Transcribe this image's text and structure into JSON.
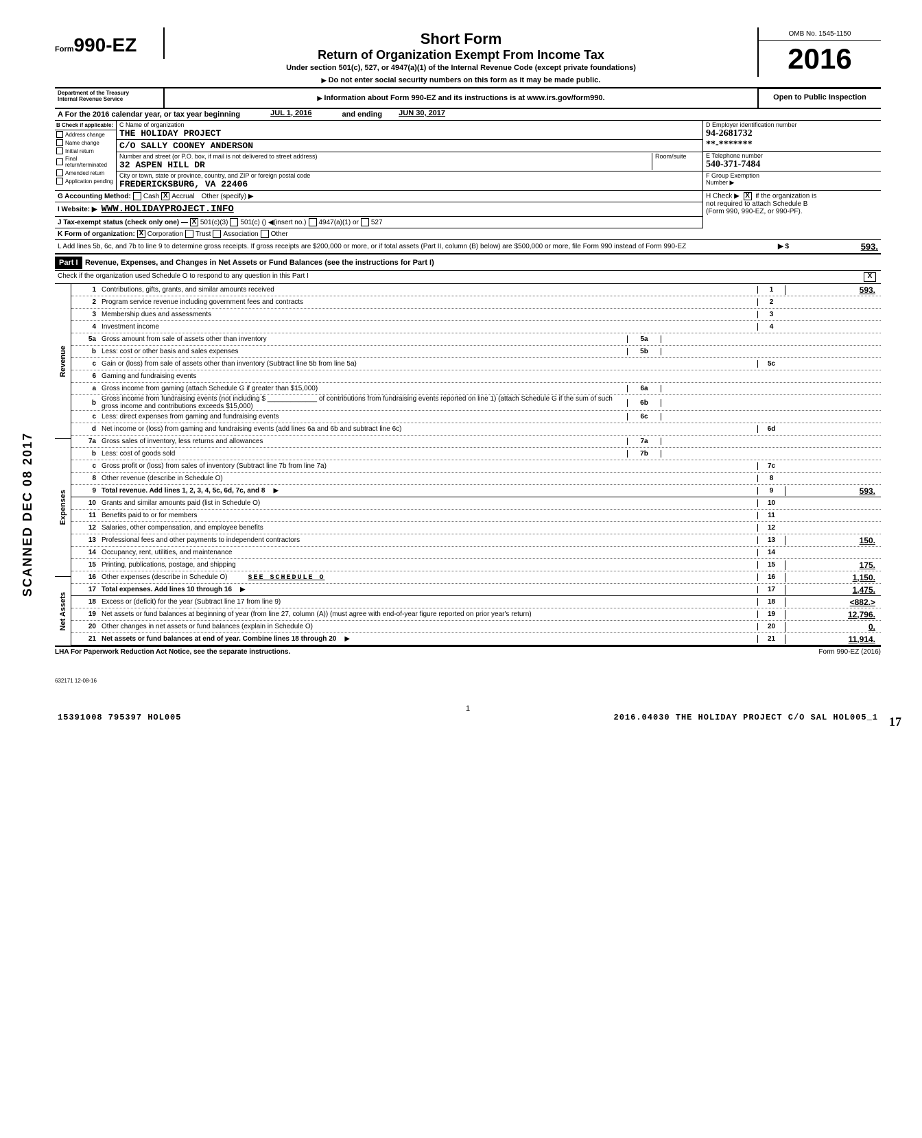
{
  "omb": "OMB No. 1545-1150",
  "form_label": "Form",
  "form_name": "990-EZ",
  "year": "2016",
  "title1": "Short Form",
  "title2": "Return of Organization Exempt From Income Tax",
  "subtitle": "Under section 501(c), 527, or 4947(a)(1) of the Internal Revenue Code (except private foundations)",
  "warn": "Do not enter social security numbers on this form as it may be made public.",
  "info": "Information about Form 990-EZ and its instructions is at www.irs.gov/form990.",
  "open": "Open to Public Inspection",
  "dept1": "Department of the Treasury",
  "dept2": "Internal Revenue Service",
  "rowA": {
    "label": "A  For the 2016 calendar year, or tax year beginning",
    "begin": "JUL 1, 2016",
    "mid": "and ending",
    "end": "JUN 30, 2017"
  },
  "checkB": {
    "hdr": "B Check if applicable:",
    "items": [
      "Address change",
      "Name change",
      "Initial return",
      "Final return/terminated",
      "Amended return",
      "Application pending"
    ]
  },
  "colC": {
    "name_lbl": "C Name of organization",
    "name": "THE HOLIDAY PROJECT",
    "care": "C/O SALLY COONEY ANDERSON",
    "addr_lbl": "Number and street (or P.O. box, if mail is not delivered to street address)",
    "room_lbl": "Room/suite",
    "addr": "32 ASPEN HILL DR",
    "city_lbl": "City or town, state or province, country, and ZIP or foreign postal code",
    "city": "FREDERICKSBURG, VA  22406"
  },
  "colD": {
    "ein_lbl": "D Employer identification number",
    "ein": "94-2681732",
    "tel_lbl": "E Telephone number",
    "tel": "540-371-7484",
    "grp_lbl": "F Group Exemption",
    "grp2": "Number ▶"
  },
  "rowG": {
    "lbl": "G  Accounting Method:",
    "cash": "Cash",
    "accrual": "Accrual",
    "other": "Other (specify) ▶"
  },
  "rowH": {
    "lbl": "H Check ▶",
    "txt1": "if the organization is",
    "txt2": "not required to attach Schedule B",
    "txt3": "(Form 990, 990-EZ, or 990-PF)."
  },
  "rowI": {
    "lbl": "I   Website: ▶",
    "val": "WWW.HOLIDAYPROJECT.INFO"
  },
  "rowJ": {
    "lbl": "J   Tax-exempt status (check only one) —",
    "a": "501(c)(3)",
    "b": "501(c) (",
    "c": ") ◀(insert no.)",
    "d": "4947(a)(1) or",
    "e": "527"
  },
  "rowK": {
    "lbl": "K  Form of organization:",
    "a": "Corporation",
    "b": "Trust",
    "c": "Association",
    "d": "Other"
  },
  "rowL": {
    "txt": "L   Add lines 5b, 6c, and 7b to line 9 to determine gross receipts. If gross receipts are $200,000 or more, or if total assets (Part II, column (B) below) are $500,000 or more, file Form 990 instead of Form 990-EZ",
    "sym": "▶  $",
    "val": "593."
  },
  "partI": {
    "hdr": "Part I",
    "title": "Revenue, Expenses, and Changes in Net Assets or Fund Balances (see the instructions for Part I)"
  },
  "schedO": {
    "txt": "Check if the organization used Schedule O to respond to any question in this Part I",
    "mark": "X"
  },
  "sections": {
    "rev": "Revenue",
    "exp": "Expenses",
    "net": "Net Assets"
  },
  "lines": [
    {
      "n": "1",
      "d": "Contributions, gifts, grants, and similar amounts received",
      "box": "1",
      "v": "593."
    },
    {
      "n": "2",
      "d": "Program service revenue including government fees and contracts",
      "box": "2",
      "v": ""
    },
    {
      "n": "3",
      "d": "Membership dues and assessments",
      "box": "3",
      "v": ""
    },
    {
      "n": "4",
      "d": "Investment income",
      "box": "4",
      "v": ""
    },
    {
      "n": "5a",
      "d": "Gross amount from sale of assets other than inventory",
      "mid": "5a",
      "midv": ""
    },
    {
      "n": "b",
      "d": "Less: cost or other basis and sales expenses",
      "mid": "5b",
      "midv": ""
    },
    {
      "n": "c",
      "d": "Gain or (loss) from sale of assets other than inventory (Subtract line 5b from line 5a)",
      "box": "5c",
      "v": ""
    },
    {
      "n": "6",
      "d": "Gaming and fundraising events"
    },
    {
      "n": "a",
      "d": "Gross income from gaming (attach Schedule G if greater than $15,000)",
      "mid": "6a",
      "midv": ""
    },
    {
      "n": "b",
      "d": "Gross income from fundraising events (not including $ _____________ of contributions from fundraising events reported on line 1) (attach Schedule G if the sum of such gross income and contributions exceeds $15,000)",
      "mid": "6b",
      "midv": ""
    },
    {
      "n": "c",
      "d": "Less: direct expenses from gaming and fundraising events",
      "mid": "6c",
      "midv": ""
    },
    {
      "n": "d",
      "d": "Net income or (loss) from gaming and fundraising events (add lines 6a and 6b and subtract line 6c)",
      "box": "6d",
      "v": ""
    },
    {
      "n": "7a",
      "d": "Gross sales of inventory, less returns and allowances",
      "mid": "7a",
      "midv": ""
    },
    {
      "n": "b",
      "d": "Less: cost of goods sold",
      "mid": "7b",
      "midv": ""
    },
    {
      "n": "c",
      "d": "Gross profit or (loss) from sales of inventory (Subtract line 7b from line 7a)",
      "box": "7c",
      "v": ""
    },
    {
      "n": "8",
      "d": "Other revenue (describe in Schedule O)",
      "box": "8",
      "v": ""
    },
    {
      "n": "9",
      "d": "Total revenue. Add lines 1, 2, 3, 4, 5c, 6d, 7c, and 8",
      "box": "9",
      "v": "593.",
      "arrow": true,
      "bold": true
    },
    {
      "n": "10",
      "d": "Grants and similar amounts paid (list in Schedule O)",
      "box": "10",
      "v": ""
    },
    {
      "n": "11",
      "d": "Benefits paid to or for members",
      "box": "11",
      "v": ""
    },
    {
      "n": "12",
      "d": "Salaries, other compensation, and employee benefits",
      "box": "12",
      "v": ""
    },
    {
      "n": "13",
      "d": "Professional fees and other payments to independent contractors",
      "box": "13",
      "v": "150."
    },
    {
      "n": "14",
      "d": "Occupancy, rent, utilities, and maintenance",
      "box": "14",
      "v": ""
    },
    {
      "n": "15",
      "d": "Printing, publications, postage, and shipping",
      "box": "15",
      "v": "175."
    },
    {
      "n": "16",
      "d": "Other expenses (describe in Schedule O)",
      "extra": "SEE SCHEDULE O",
      "box": "16",
      "v": "1,150."
    },
    {
      "n": "17",
      "d": "Total expenses. Add lines 10 through 16",
      "box": "17",
      "v": "1,475.",
      "arrow": true,
      "bold": true
    },
    {
      "n": "18",
      "d": "Excess or (deficit) for the year (Subtract line 17 from line 9)",
      "box": "18",
      "v": "<882.>"
    },
    {
      "n": "19",
      "d": "Net assets or fund balances at beginning of year (from line 27, column (A)) (must agree with end-of-year figure reported on prior year's return)",
      "box": "19",
      "v": "12,796."
    },
    {
      "n": "20",
      "d": "Other changes in net assets or fund balances (explain in Schedule O)",
      "box": "20",
      "v": "0."
    },
    {
      "n": "21",
      "d": "Net assets or fund balances at end of year. Combine lines 18 through 20",
      "box": "21",
      "v": "11,914.",
      "arrow": true,
      "bold": true
    }
  ],
  "lha": "LHA  For Paperwork Reduction Act Notice, see the separate instructions.",
  "form_foot": "Form 990-EZ (2016)",
  "rev": "632171  12-08-16",
  "pagenum": "1",
  "bottom": {
    "l": "15391008 795397 HOL005",
    "r": "2016.04030 THE HOLIDAY PROJECT C/O SAL HOL005_1"
  },
  "stamp": "SCANNED DEC 08 2017",
  "pagecorner": "17"
}
